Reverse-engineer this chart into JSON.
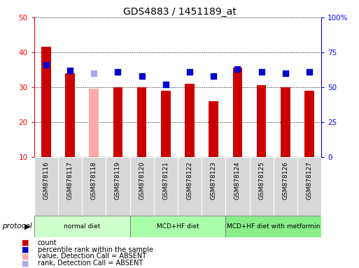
{
  "title": "GDS4883 / 1451189_at",
  "samples": [
    "GSM878116",
    "GSM878117",
    "GSM878118",
    "GSM878119",
    "GSM878120",
    "GSM878121",
    "GSM878122",
    "GSM878123",
    "GSM878124",
    "GSM878125",
    "GSM878126",
    "GSM878127"
  ],
  "count_values": [
    41.5,
    34.0,
    29.5,
    30.0,
    30.0,
    29.0,
    31.0,
    26.0,
    35.5,
    30.5,
    30.0,
    29.0
  ],
  "count_absent": [
    false,
    false,
    true,
    false,
    false,
    false,
    false,
    false,
    false,
    false,
    false,
    false
  ],
  "percentile_values": [
    66.0,
    62.0,
    60.0,
    61.0,
    58.0,
    52.0,
    61.0,
    58.0,
    63.0,
    61.0,
    60.0,
    61.0
  ],
  "percentile_absent": [
    false,
    false,
    true,
    false,
    false,
    false,
    false,
    false,
    false,
    false,
    false,
    false
  ],
  "bar_color_present": "#cc0000",
  "bar_color_absent": "#ffaaaa",
  "dot_color_present": "#0000cc",
  "dot_color_absent": "#aaaaee",
  "ylim_left": [
    10,
    50
  ],
  "ylim_right": [
    0,
    100
  ],
  "yticks_left": [
    10,
    20,
    30,
    40,
    50
  ],
  "yticks_right": [
    0,
    25,
    50,
    75,
    100
  ],
  "ytick_labels_right": [
    "0",
    "25",
    "50",
    "75",
    "100%"
  ],
  "groups": [
    {
      "label": "normal diet",
      "start": 0,
      "end": 4,
      "color": "#ccffcc"
    },
    {
      "label": "MCD+HF diet",
      "start": 4,
      "end": 8,
      "color": "#aaffaa"
    },
    {
      "label": "MCD+HF diet with metformin",
      "start": 8,
      "end": 12,
      "color": "#88ee88"
    }
  ],
  "legend_items": [
    {
      "label": "count",
      "color": "#cc0000"
    },
    {
      "label": "percentile rank within the sample",
      "color": "#0000cc"
    },
    {
      "label": "value, Detection Call = ABSENT",
      "color": "#ffaaaa"
    },
    {
      "label": "rank, Detection Call = ABSENT",
      "color": "#aaaaee"
    }
  ],
  "bar_width": 0.4,
  "dot_size": 28
}
